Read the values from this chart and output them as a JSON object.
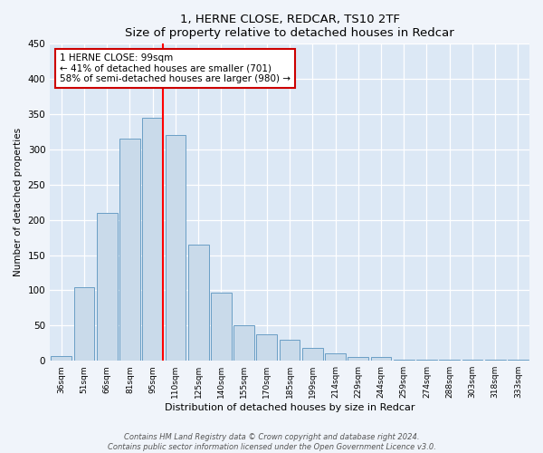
{
  "title": "1, HERNE CLOSE, REDCAR, TS10 2TF",
  "subtitle": "Size of property relative to detached houses in Redcar",
  "xlabel": "Distribution of detached houses by size in Redcar",
  "ylabel": "Number of detached properties",
  "bar_labels": [
    "36sqm",
    "51sqm",
    "66sqm",
    "81sqm",
    "95sqm",
    "110sqm",
    "125sqm",
    "140sqm",
    "155sqm",
    "170sqm",
    "185sqm",
    "199sqm",
    "214sqm",
    "229sqm",
    "244sqm",
    "259sqm",
    "274sqm",
    "288sqm",
    "303sqm",
    "318sqm",
    "333sqm"
  ],
  "bar_values": [
    7,
    105,
    210,
    315,
    345,
    320,
    165,
    97,
    50,
    37,
    30,
    18,
    10,
    5,
    5,
    2,
    2,
    1,
    1,
    1,
    1
  ],
  "bar_color": "#c9daea",
  "bar_edge_color": "#6a9ec5",
  "red_line_index": 4,
  "annotation_title": "1 HERNE CLOSE: 99sqm",
  "annotation_line1": "← 41% of detached houses are smaller (701)",
  "annotation_line2": "58% of semi-detached houses are larger (980) →",
  "annotation_box_color": "#ffffff",
  "annotation_box_edge": "#cc0000",
  "ylim": [
    0,
    450
  ],
  "yticks": [
    0,
    50,
    100,
    150,
    200,
    250,
    300,
    350,
    400,
    450
  ],
  "fig_bg_color": "#f0f4fa",
  "plot_bg_color": "#dce8f5",
  "footer1": "Contains HM Land Registry data © Crown copyright and database right 2024.",
  "footer2": "Contains public sector information licensed under the Open Government Licence v3.0."
}
